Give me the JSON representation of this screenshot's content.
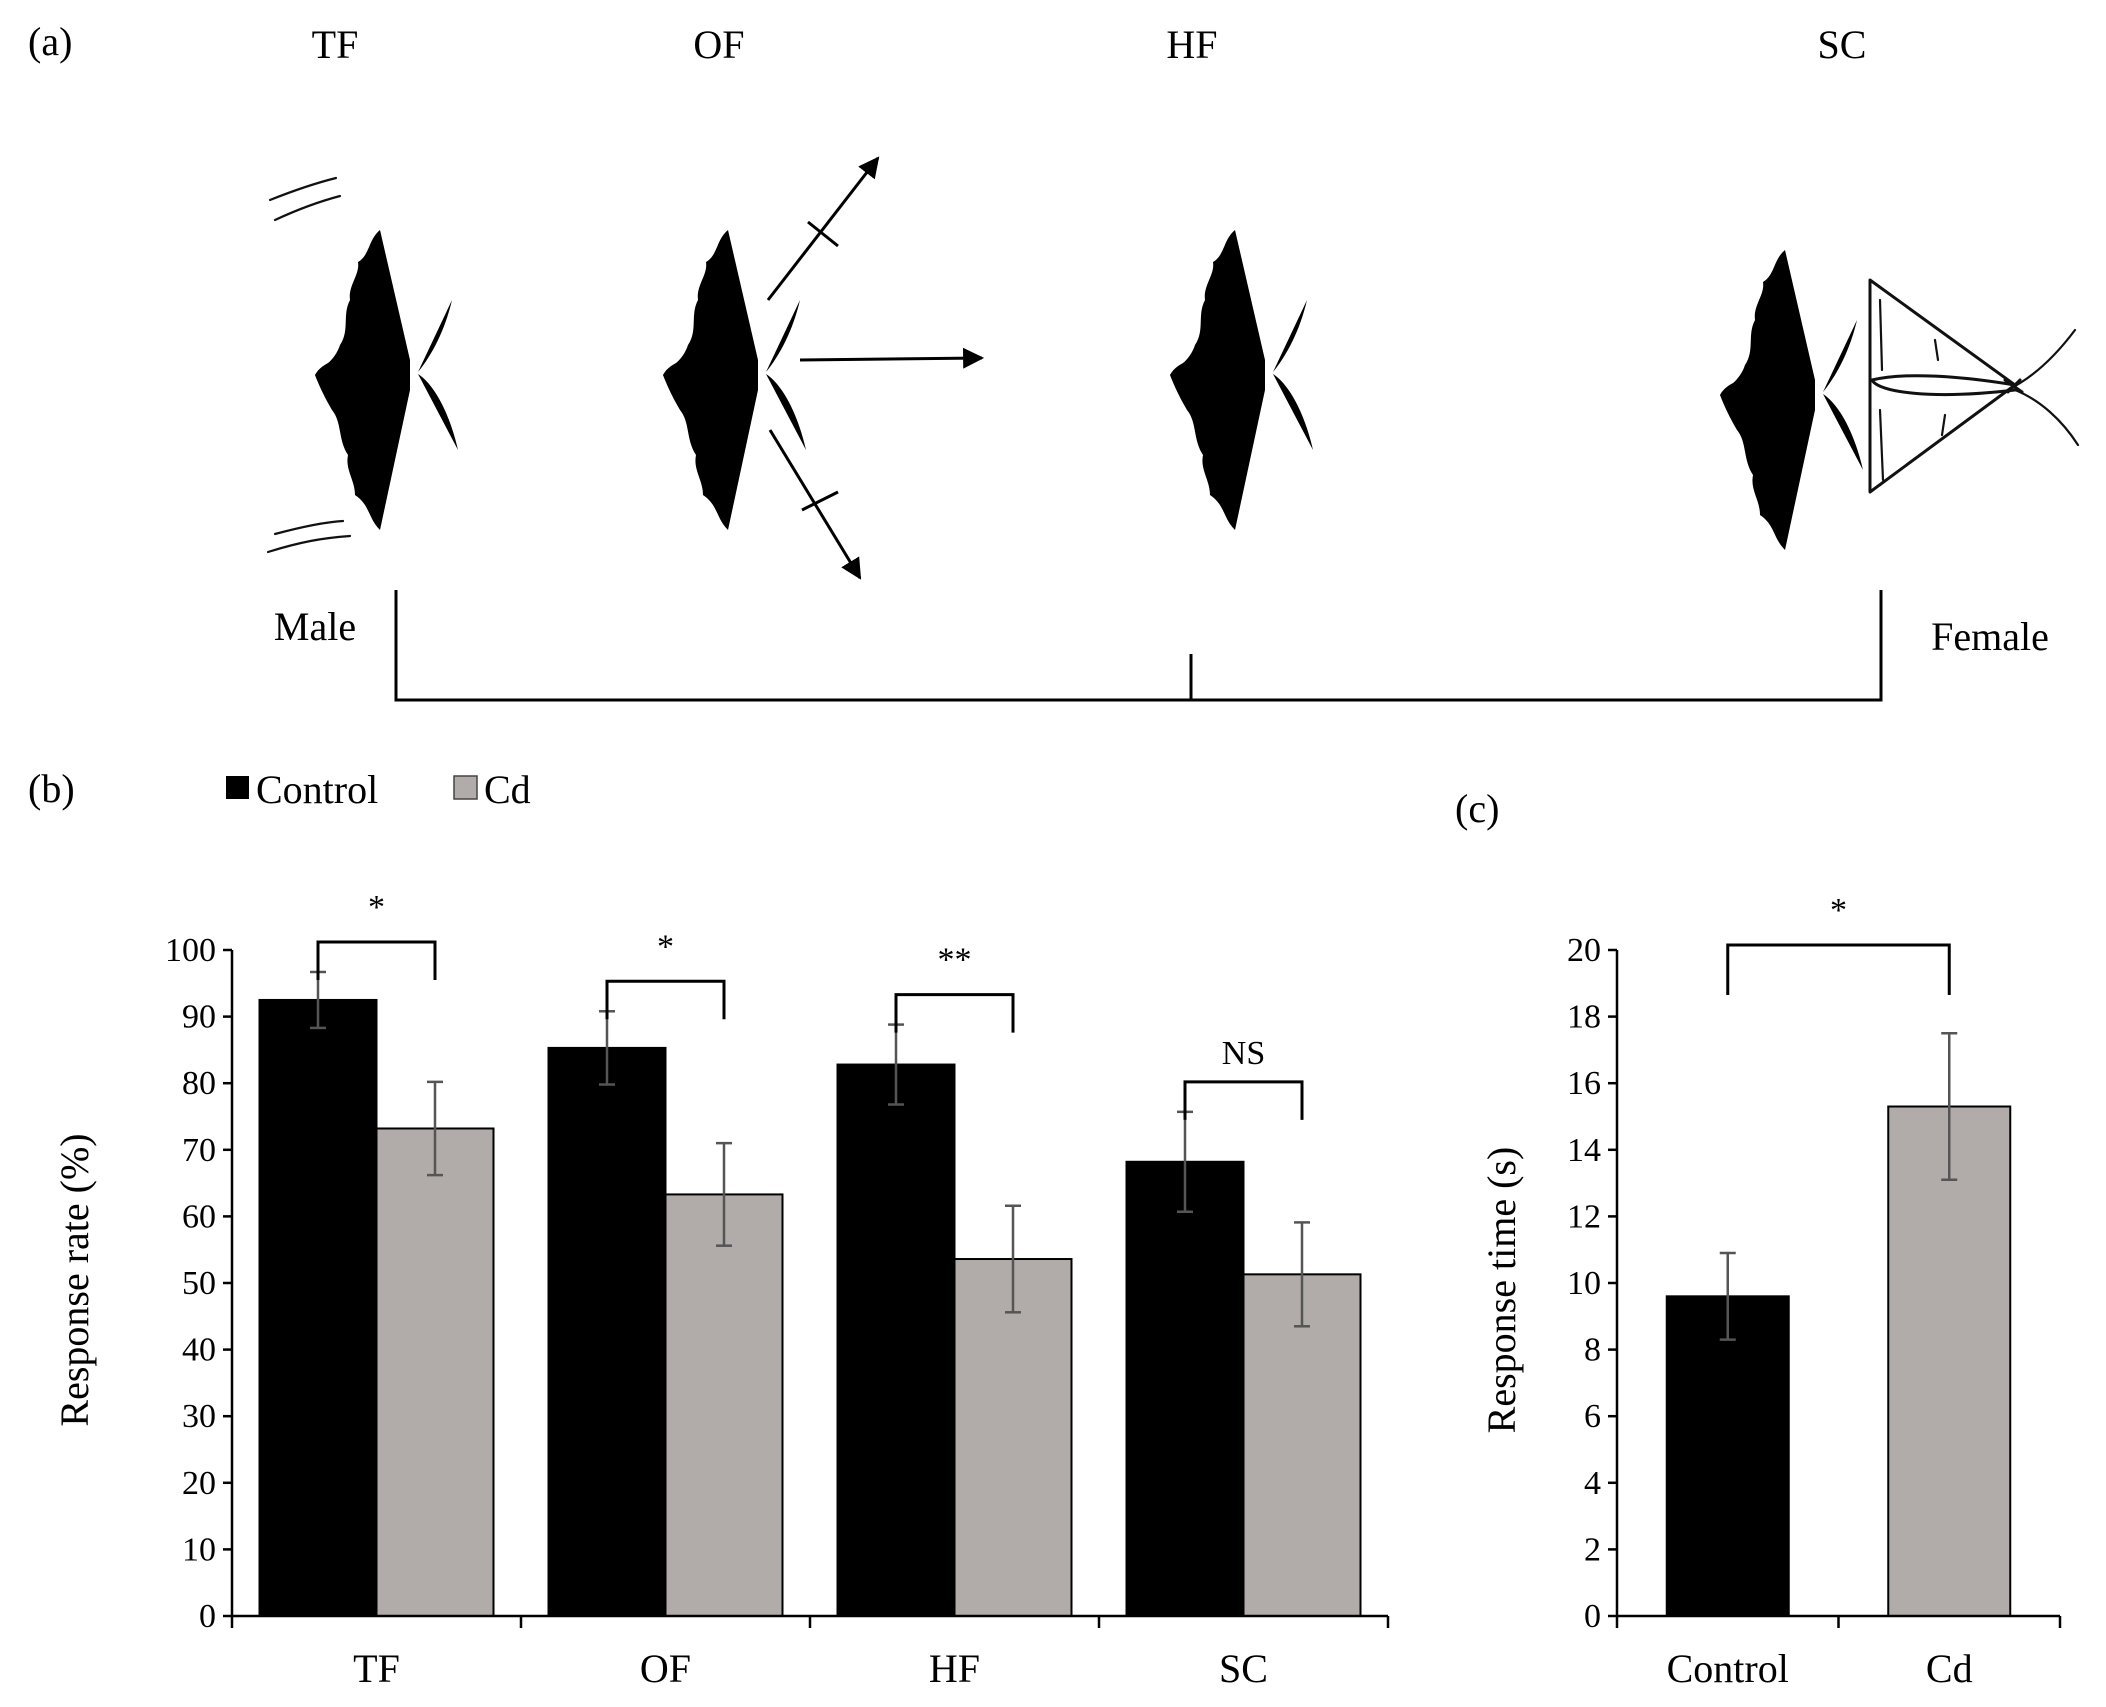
{
  "panel_a": {
    "panel_label": "(a)",
    "stages": [
      "TF",
      "OF",
      "HF",
      "SC"
    ],
    "left_label": "Male",
    "right_label": "Female"
  },
  "chart_data": [
    {
      "panel_label": "(b)",
      "type": "bar",
      "categories": [
        "TF",
        "OF",
        "HF",
        "SC"
      ],
      "series": [
        {
          "name": "Control",
          "color": "#000000",
          "values": [
            92.5,
            85.3,
            82.8,
            68.2
          ],
          "errors": [
            4.2,
            5.5,
            6.0,
            7.5
          ]
        },
        {
          "name": "Cd",
          "color": "#b1aca9",
          "values": [
            73.2,
            63.3,
            53.6,
            51.3
          ],
          "errors": [
            7.0,
            7.7,
            8.0,
            7.8
          ]
        }
      ],
      "significance": [
        "*",
        "*",
        "**",
        "NS"
      ],
      "ylabel": "Response rate (%)",
      "xlabel": "",
      "ylim": [
        0,
        100
      ],
      "yticks": [
        0,
        10,
        20,
        30,
        40,
        50,
        60,
        70,
        80,
        90,
        100
      ],
      "legend": "top-left"
    },
    {
      "panel_label": "(c)",
      "type": "bar",
      "categories": [
        "Control",
        "Cd"
      ],
      "values": [
        9.6,
        15.3
      ],
      "errors": [
        1.3,
        2.2
      ],
      "colors": [
        "#000000",
        "#b1aca9"
      ],
      "significance": "*",
      "ylabel": "Response time (s)",
      "xlabel": "",
      "ylim": [
        0,
        20
      ],
      "yticks": [
        0,
        2,
        4,
        6,
        8,
        10,
        12,
        14,
        16,
        18,
        20
      ]
    }
  ]
}
